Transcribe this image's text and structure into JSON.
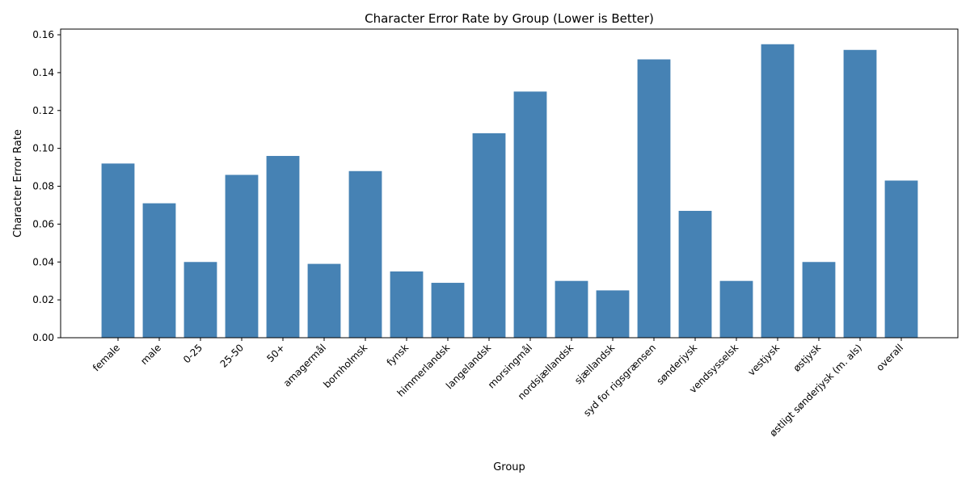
{
  "chart_data": {
    "type": "bar",
    "title": "Character Error Rate by Group (Lower is Better)",
    "xlabel": "Group",
    "ylabel": "Character Error Rate",
    "ylim": [
      0,
      0.163
    ],
    "yticks": [
      0.0,
      0.02,
      0.04,
      0.06,
      0.08,
      0.1,
      0.12,
      0.14,
      0.16
    ],
    "ytick_labels": [
      "0.00",
      "0.02",
      "0.04",
      "0.06",
      "0.08",
      "0.10",
      "0.12",
      "0.14",
      "0.16"
    ],
    "grid": false,
    "bar_color": "#4682b4",
    "categories": [
      "female",
      "male",
      "0-25",
      "25-50",
      "50+",
      "amagermål",
      "bornholmsk",
      "fynsk",
      "himmerlandsk",
      "langelandsk",
      "morsingmål",
      "nordsjællandsk",
      "sjællandsk",
      "syd for rigsgrænsen",
      "sønderjysk",
      "vendsysselsk",
      "vestjysk",
      "østjysk",
      "østligt sønderjysk (m. als)",
      "overall"
    ],
    "values": [
      0.092,
      0.071,
      0.04,
      0.086,
      0.096,
      0.039,
      0.088,
      0.035,
      0.029,
      0.108,
      0.13,
      0.03,
      0.025,
      0.147,
      0.067,
      0.03,
      0.155,
      0.04,
      0.152,
      0.083
    ]
  }
}
